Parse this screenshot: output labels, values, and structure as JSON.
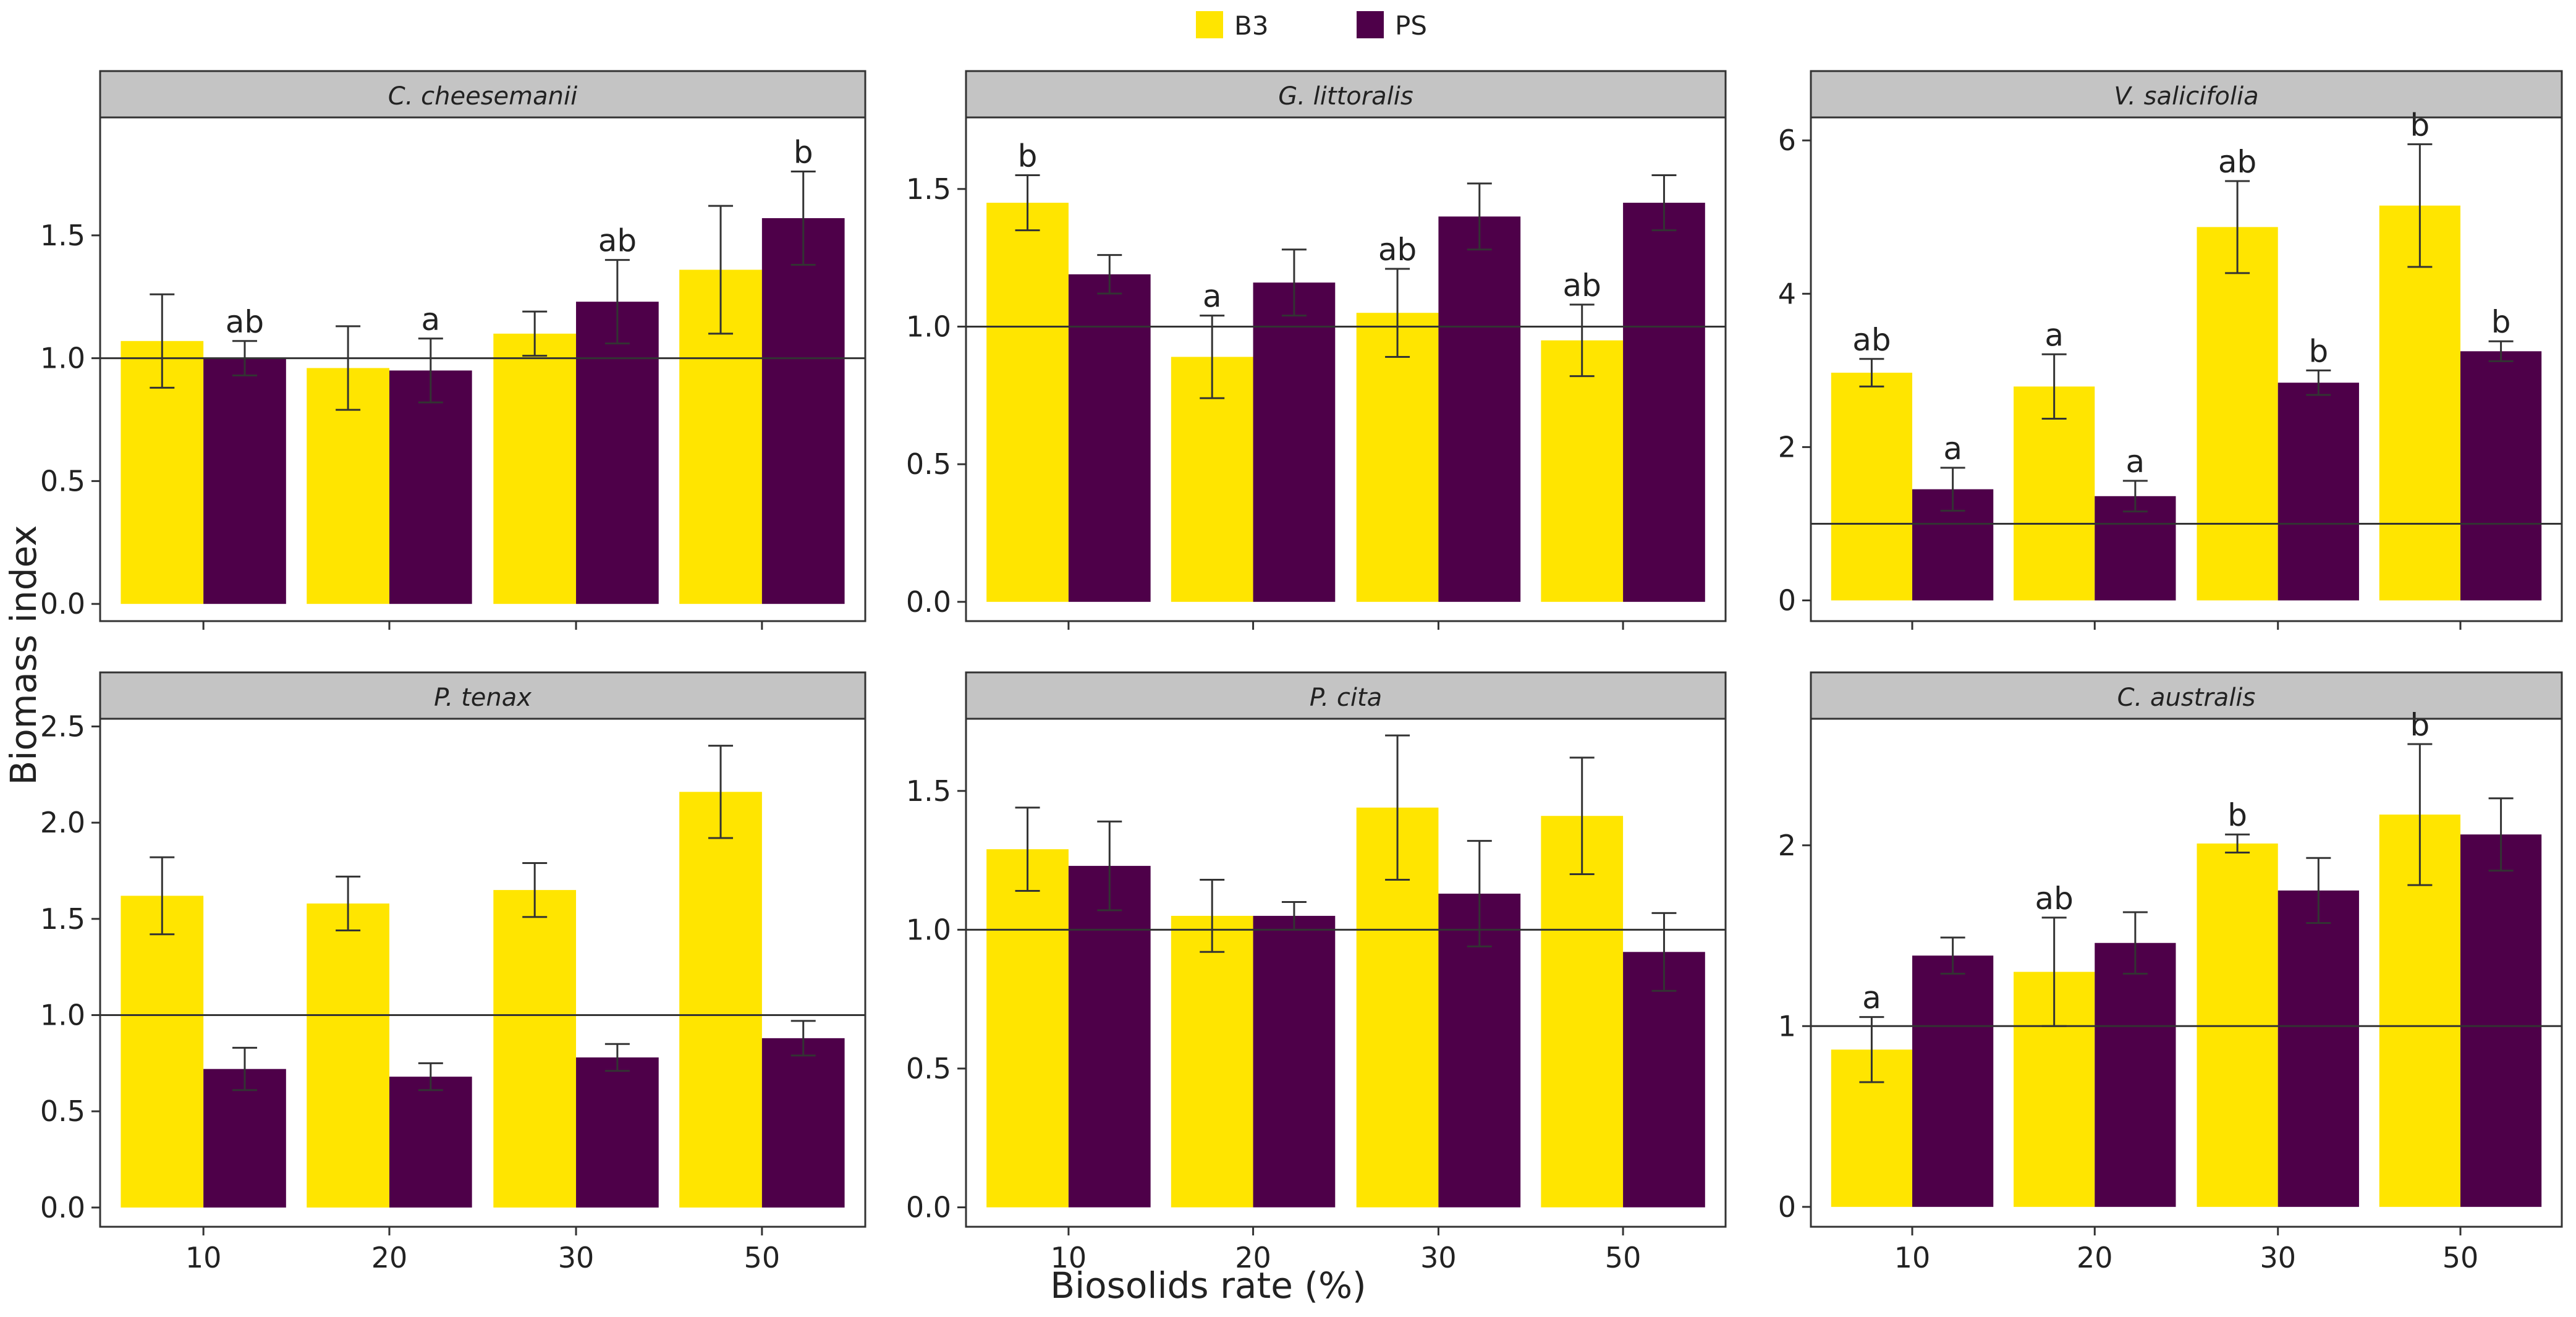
{
  "colors": {
    "B3": "#FFE500",
    "PS": "#4E0049",
    "strip": "#c4c4c4",
    "errorbar": "#333333",
    "reference_line": "#333333"
  },
  "legend": {
    "position": "top",
    "items": [
      {
        "key": "B3",
        "label": "B3"
      },
      {
        "key": "PS",
        "label": "PS"
      }
    ]
  },
  "axes": {
    "x_title": "Biosolids rate (%)",
    "y_title": "Biomass index"
  },
  "chart_data": {
    "type": "bar",
    "categories": [
      "10",
      "20",
      "30",
      "50"
    ],
    "series_names": [
      "B3",
      "PS"
    ],
    "reference_line": 1.0,
    "panels": [
      {
        "title": "C. cheesemanii",
        "ylim": [
          -0.07,
          1.98
        ],
        "yticks": [
          "0.0",
          "0.5",
          "1.0",
          "1.5"
        ],
        "series": [
          {
            "name": "B3",
            "values": [
              1.07,
              0.96,
              1.1,
              1.36
            ],
            "error": [
              0.19,
              0.17,
              0.09,
              0.26
            ],
            "labels": [
              "",
              "",
              "",
              ""
            ]
          },
          {
            "name": "PS",
            "values": [
              1.0,
              0.95,
              1.23,
              1.57
            ],
            "error": [
              0.07,
              0.13,
              0.17,
              0.19
            ],
            "labels": [
              "ab",
              "a",
              "ab",
              "b"
            ]
          }
        ]
      },
      {
        "title": "G. littoralis",
        "ylim": [
          -0.07,
          1.76
        ],
        "yticks": [
          "0.0",
          "0.5",
          "1.0",
          "1.5"
        ],
        "series": [
          {
            "name": "B3",
            "values": [
              1.45,
              0.89,
              1.05,
              0.95
            ],
            "error": [
              0.1,
              0.15,
              0.16,
              0.13
            ],
            "labels": [
              "b",
              "a",
              "ab",
              "ab"
            ]
          },
          {
            "name": "PS",
            "values": [
              1.19,
              1.16,
              1.4,
              1.45
            ],
            "error": [
              0.07,
              0.12,
              0.12,
              0.1
            ],
            "labels": [
              "",
              "",
              "",
              ""
            ]
          }
        ]
      },
      {
        "title": "V. salicifolia",
        "ylim": [
          -0.27,
          6.3
        ],
        "yticks": [
          "0",
          "2",
          "4",
          "6"
        ],
        "series": [
          {
            "name": "B3",
            "values": [
              2.97,
              2.79,
              4.87,
              5.15
            ],
            "error": [
              0.18,
              0.42,
              0.6,
              0.8
            ],
            "labels": [
              "ab",
              "a",
              "ab",
              "b"
            ]
          },
          {
            "name": "PS",
            "values": [
              1.45,
              1.36,
              2.84,
              3.25
            ],
            "error": [
              0.28,
              0.2,
              0.16,
              0.13
            ],
            "labels": [
              "a",
              "a",
              "b",
              "b"
            ]
          }
        ]
      },
      {
        "title": "P. tenax",
        "ylim": [
          -0.1,
          2.54
        ],
        "yticks": [
          "0.0",
          "0.5",
          "1.0",
          "1.5",
          "2.0",
          "2.5"
        ],
        "series": [
          {
            "name": "B3",
            "values": [
              1.62,
              1.58,
              1.65,
              2.16
            ],
            "error": [
              0.2,
              0.14,
              0.14,
              0.24
            ],
            "labels": [
              "",
              "",
              "",
              ""
            ]
          },
          {
            "name": "PS",
            "values": [
              0.72,
              0.68,
              0.78,
              0.88
            ],
            "error": [
              0.11,
              0.07,
              0.07,
              0.09
            ],
            "labels": [
              "",
              "",
              "",
              ""
            ]
          }
        ]
      },
      {
        "title": "P. cita",
        "ylim": [
          -0.07,
          1.76
        ],
        "yticks": [
          "0.0",
          "0.5",
          "1.0",
          "1.5"
        ],
        "series": [
          {
            "name": "B3",
            "values": [
              1.29,
              1.05,
              1.44,
              1.41
            ],
            "error": [
              0.15,
              0.13,
              0.26,
              0.21
            ],
            "labels": [
              "",
              "",
              "",
              ""
            ]
          },
          {
            "name": "PS",
            "values": [
              1.23,
              1.05,
              1.13,
              0.92
            ],
            "error": [
              0.16,
              0.05,
              0.19,
              0.14
            ],
            "labels": [
              "",
              "",
              "",
              ""
            ]
          }
        ]
      },
      {
        "title": "C. australis",
        "ylim": [
          -0.11,
          2.7
        ],
        "yticks": [
          "0",
          "1",
          "2"
        ],
        "series": [
          {
            "name": "B3",
            "values": [
              0.87,
              1.3,
              2.01,
              2.17
            ],
            "error": [
              0.18,
              0.3,
              0.05,
              0.39
            ],
            "labels": [
              "a",
              "ab",
              "b",
              "b"
            ]
          },
          {
            "name": "PS",
            "values": [
              1.39,
              1.46,
              1.75,
              2.06
            ],
            "error": [
              0.1,
              0.17,
              0.18,
              0.2
            ],
            "labels": [
              "",
              "",
              "",
              ""
            ]
          }
        ]
      }
    ]
  }
}
